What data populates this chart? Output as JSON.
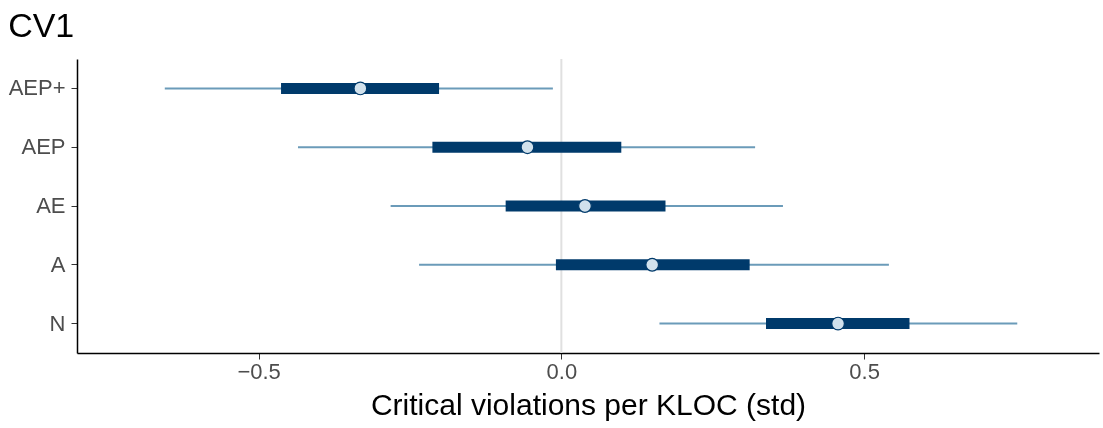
{
  "chart_data": {
    "type": "box",
    "orientation": "horizontal",
    "title": "CV1",
    "xlabel": "Critical violations per KLOC (std)",
    "categories": [
      "AEP+",
      "AEP",
      "AE",
      "A",
      "N"
    ],
    "series": [
      {
        "color": "#003a6b",
        "boxes": [
          {
            "low": -0.655,
            "q1": -0.463,
            "median": -0.332,
            "q3": -0.202,
            "high": -0.014
          },
          {
            "low": -0.435,
            "q1": -0.213,
            "median": -0.056,
            "q3": 0.099,
            "high": 0.32
          },
          {
            "low": -0.282,
            "q1": -0.092,
            "median": 0.039,
            "q3": 0.172,
            "high": 0.366
          },
          {
            "low": -0.235,
            "q1": -0.009,
            "median": 0.15,
            "q3": 0.311,
            "high": 0.541
          },
          {
            "low": 0.162,
            "q1": 0.338,
            "median": 0.457,
            "q3": 0.575,
            "high": 0.753
          }
        ]
      }
    ],
    "xlim": [
      -0.8,
      0.888
    ],
    "xticks": [
      {
        "value": -0.5,
        "label": "−0.5"
      },
      {
        "value": 0,
        "label": "0.0"
      },
      {
        "value": 0.5,
        "label": "0.5"
      }
    ],
    "ref_lines": [
      {
        "axis": "x",
        "value": 0,
        "color": "#e0e0e0"
      }
    ],
    "grid": false
  }
}
